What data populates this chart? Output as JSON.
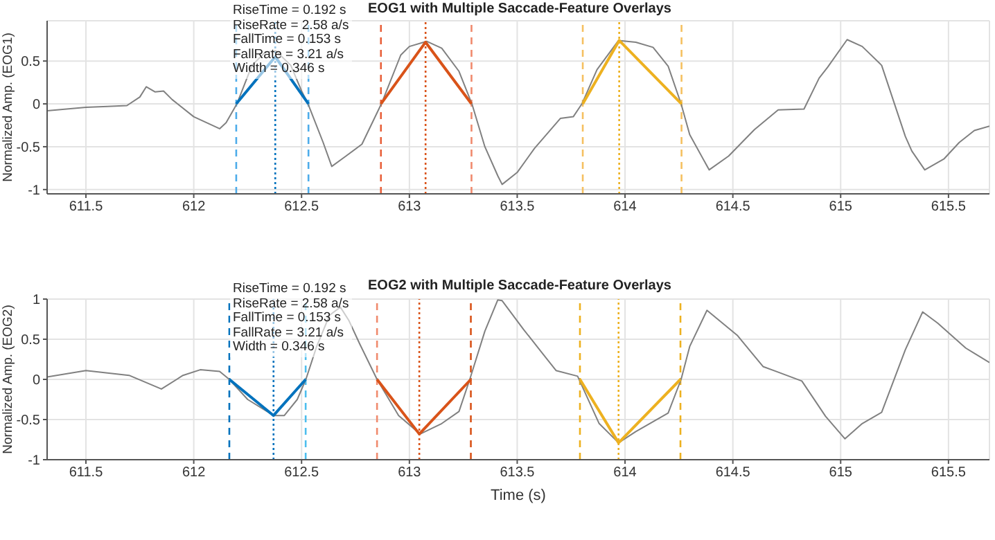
{
  "chart_data": [
    {
      "type": "line",
      "title": "EOG1 with Multiple Saccade-Feature Overlays",
      "ylabel": "Normalized Amp. (EOG1)",
      "xlim": [
        611.32,
        615.69
      ],
      "ylim": [
        -1.05,
        0.97
      ],
      "xticks": [
        611.5,
        612,
        612.5,
        613,
        613.5,
        614,
        614.5,
        615,
        615.5
      ],
      "yticks": [
        -1,
        -0.5,
        0,
        0.5
      ],
      "grid": true,
      "line_style": "solid",
      "annotations": [
        "RiseTime = 0.192 s",
        "RiseRate = 2.58 a/s",
        "FallTime = 0.153 s",
        "FallRate = 3.21 a/s",
        "Width = 0.346 s"
      ],
      "x": [
        611.32,
        611.5,
        611.6,
        611.69,
        611.75,
        611.78,
        611.82,
        611.86,
        611.9,
        612.0,
        612.12,
        612.15,
        612.2,
        612.27,
        612.33,
        612.38,
        612.45,
        612.5,
        612.53,
        612.6,
        612.64,
        612.7,
        612.78,
        612.87,
        612.96,
        613.0,
        613.08,
        613.15,
        613.23,
        613.29,
        613.35,
        613.41,
        613.43,
        613.5,
        613.58,
        613.7,
        613.76,
        613.8,
        613.87,
        613.97,
        614.05,
        614.13,
        614.2,
        614.26,
        614.3,
        614.39,
        614.48,
        614.6,
        614.71,
        614.83,
        614.9,
        614.94,
        615.03,
        615.1,
        615.19,
        615.3,
        615.33,
        615.39,
        615.48,
        615.55,
        615.62,
        615.69
      ],
      "series": [
        {
          "color": "#808080",
          "values": [
            -0.08,
            -0.04,
            -0.03,
            -0.02,
            0.08,
            0.2,
            0.14,
            0.15,
            0.05,
            -0.15,
            -0.29,
            -0.22,
            0.0,
            0.45,
            0.6,
            0.62,
            0.45,
            0.15,
            0.0,
            -0.45,
            -0.73,
            -0.62,
            -0.47,
            0.0,
            0.57,
            0.67,
            0.73,
            0.65,
            0.38,
            0.0,
            -0.5,
            -0.84,
            -0.94,
            -0.8,
            -0.52,
            -0.17,
            -0.15,
            0.0,
            0.4,
            0.74,
            0.72,
            0.66,
            0.44,
            0.0,
            -0.36,
            -0.77,
            -0.61,
            -0.3,
            -0.07,
            -0.06,
            0.3,
            0.43,
            0.75,
            0.67,
            0.45,
            -0.38,
            -0.55,
            -0.77,
            -0.64,
            -0.45,
            -0.31,
            -0.26
          ]
        },
        {
          "color": "#0072bd",
          "x": [
            612.197,
            612.378,
            612.532
          ],
          "values": [
            0,
            0.55,
            0
          ]
        },
        {
          "color": "#d95319",
          "x": [
            612.868,
            613.075,
            613.288
          ],
          "values": [
            0,
            0.72,
            0
          ]
        },
        {
          "color": "#edb120",
          "x": [
            613.804,
            613.973,
            614.262
          ],
          "values": [
            0,
            0.74,
            0
          ]
        }
      ],
      "ref_lines": [
        {
          "axis": "x",
          "value": 612.197,
          "color": "#4dacea",
          "line_style": "dashed"
        },
        {
          "axis": "x",
          "value": 612.378,
          "color": "#0072bd",
          "line_style": "dotted"
        },
        {
          "axis": "x",
          "value": 612.532,
          "color": "#4dacea",
          "line_style": "dashed"
        },
        {
          "axis": "x",
          "value": 612.868,
          "color": "#e8603a",
          "line_style": "dashed"
        },
        {
          "axis": "x",
          "value": 613.075,
          "color": "#d95319",
          "line_style": "dotted"
        },
        {
          "axis": "x",
          "value": 613.288,
          "color": "#f08a6d",
          "line_style": "dashed"
        },
        {
          "axis": "x",
          "value": 613.804,
          "color": "#f5c060",
          "line_style": "dashed"
        },
        {
          "axis": "x",
          "value": 613.973,
          "color": "#edb120",
          "line_style": "dotted"
        },
        {
          "axis": "x",
          "value": 614.262,
          "color": "#f5c060",
          "line_style": "dashed"
        }
      ]
    },
    {
      "type": "line",
      "title": "EOG2 with Multiple Saccade-Feature Overlays",
      "xlabel": "Time (s)",
      "ylabel": "Normalized Amp. (EOG2)",
      "xlim": [
        611.32,
        615.69
      ],
      "ylim": [
        -1,
        1
      ],
      "xticks": [
        611.5,
        612,
        612.5,
        613,
        613.5,
        614,
        614.5,
        615,
        615.5
      ],
      "yticks": [
        -1,
        -0.5,
        0,
        0.5,
        1
      ],
      "grid": true,
      "line_style": "solid",
      "annotations": [
        "RiseTime = 0.192 s",
        "RiseRate = 2.58 a/s",
        "FallTime = 0.153 s",
        "FallRate = 3.21 a/s",
        "Width = 0.346 s"
      ],
      "x": [
        611.32,
        611.5,
        611.6,
        611.7,
        611.85,
        611.95,
        612.03,
        612.12,
        612.165,
        612.25,
        612.37,
        612.42,
        612.48,
        612.52,
        612.57,
        612.63,
        612.68,
        612.72,
        612.77,
        612.85,
        612.95,
        613.05,
        613.15,
        613.23,
        613.28,
        613.35,
        613.41,
        613.43,
        613.53,
        613.68,
        613.78,
        613.88,
        613.97,
        614.05,
        614.2,
        614.26,
        614.3,
        614.38,
        614.52,
        614.64,
        614.7,
        614.82,
        614.93,
        615.02,
        615.1,
        615.19,
        615.3,
        615.38,
        615.45,
        615.58,
        615.69
      ],
      "series": [
        {
          "color": "#808080",
          "values": [
            0.03,
            0.11,
            0.08,
            0.05,
            -0.12,
            0.05,
            0.12,
            0.1,
            0.0,
            -0.25,
            -0.45,
            -0.45,
            -0.25,
            0.0,
            0.41,
            0.8,
            0.9,
            0.73,
            0.44,
            0.0,
            -0.45,
            -0.68,
            -0.55,
            -0.4,
            0.0,
            0.6,
            0.99,
            0.98,
            0.62,
            0.11,
            0.04,
            -0.55,
            -0.79,
            -0.65,
            -0.42,
            0.0,
            0.41,
            0.86,
            0.55,
            0.16,
            0.1,
            -0.02,
            -0.46,
            -0.74,
            -0.55,
            -0.41,
            0.37,
            0.84,
            0.7,
            0.39,
            0.21
          ]
        },
        {
          "color": "#0072bd",
          "x": [
            612.165,
            612.37,
            612.519
          ],
          "values": [
            0,
            -0.45,
            0
          ]
        },
        {
          "color": "#d95319",
          "x": [
            612.85,
            613.046,
            613.285
          ],
          "values": [
            0,
            -0.68,
            0
          ]
        },
        {
          "color": "#edb120",
          "x": [
            613.791,
            613.97,
            614.257
          ],
          "values": [
            0,
            -0.79,
            0
          ]
        }
      ],
      "ref_lines": [
        {
          "axis": "x",
          "value": 612.165,
          "color": "#0072bd",
          "line_style": "dashed"
        },
        {
          "axis": "x",
          "value": 612.37,
          "color": "#0072bd",
          "line_style": "dotted"
        },
        {
          "axis": "x",
          "value": 612.519,
          "color": "#4dbeee",
          "line_style": "dashed"
        },
        {
          "axis": "x",
          "value": 612.85,
          "color": "#f08a6d",
          "line_style": "dashed"
        },
        {
          "axis": "x",
          "value": 613.046,
          "color": "#d95319",
          "line_style": "dotted"
        },
        {
          "axis": "x",
          "value": 613.285,
          "color": "#d95319",
          "line_style": "dashed"
        },
        {
          "axis": "x",
          "value": 613.791,
          "color": "#edb120",
          "line_style": "dashed"
        },
        {
          "axis": "x",
          "value": 613.97,
          "color": "#edb120",
          "line_style": "dotted"
        },
        {
          "axis": "x",
          "value": 614.257,
          "color": "#edb120",
          "line_style": "dashed"
        }
      ]
    }
  ]
}
